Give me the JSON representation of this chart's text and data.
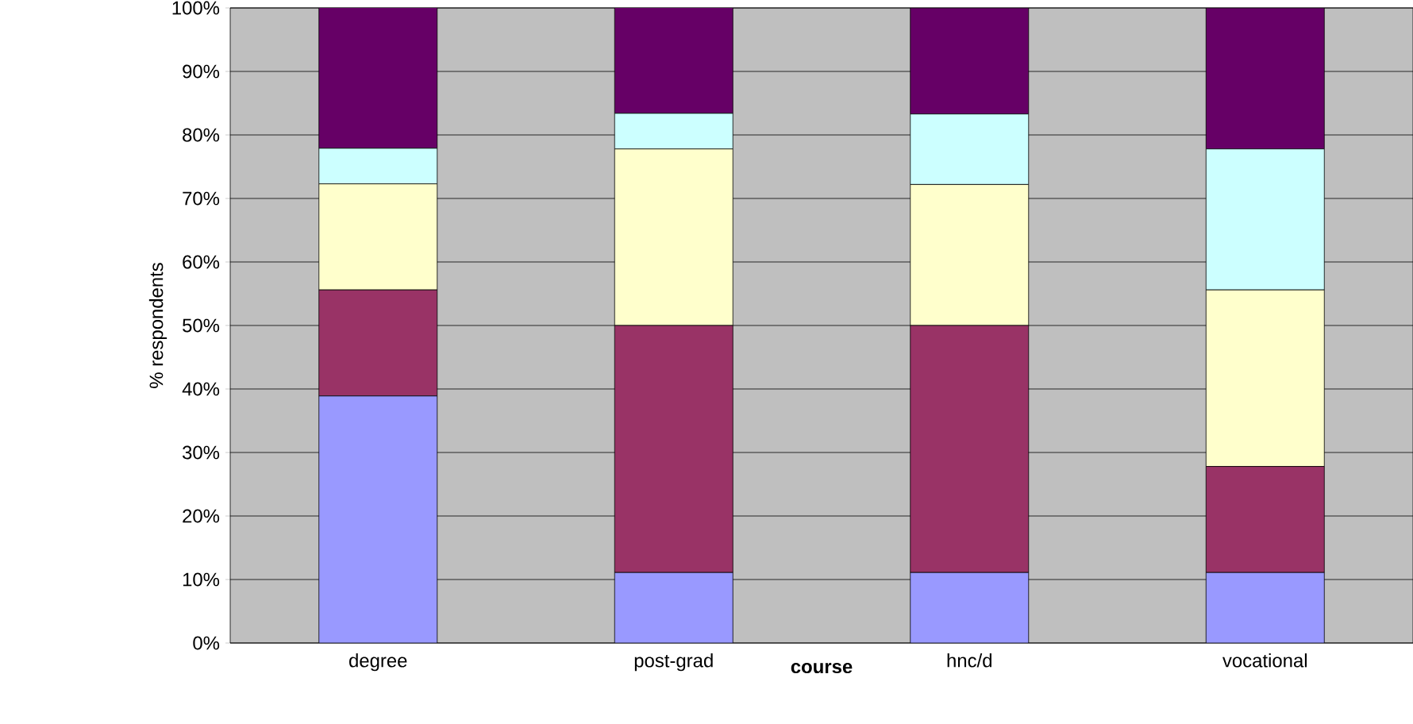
{
  "chart_data": {
    "type": "bar",
    "stacked": true,
    "xlabel": "course",
    "ylabel": "% respondents",
    "categories": [
      "degree",
      "post-grad",
      "hnc/d",
      "vocational"
    ],
    "series": [
      {
        "color": "#9999ff",
        "values": [
          38.9,
          11.1,
          11.1,
          11.1
        ]
      },
      {
        "color": "#993366",
        "values": [
          16.7,
          38.9,
          38.9,
          16.7
        ]
      },
      {
        "color": "#ffffcc",
        "values": [
          16.7,
          27.8,
          22.2,
          27.8
        ]
      },
      {
        "color": "#ccffff",
        "values": [
          5.6,
          5.6,
          11.1,
          22.2
        ]
      },
      {
        "color": "#660066",
        "values": [
          22.2,
          16.7,
          16.7,
          22.2
        ]
      }
    ],
    "ylim": [
      0,
      100
    ],
    "yticks": [
      {
        "value": 0,
        "label": "0%"
      },
      {
        "value": 10,
        "label": "10%"
      },
      {
        "value": 20,
        "label": "20%"
      },
      {
        "value": 30,
        "label": "30%"
      },
      {
        "value": 40,
        "label": "40%"
      },
      {
        "value": 50,
        "label": "50%"
      },
      {
        "value": 60,
        "label": "60%"
      },
      {
        "value": 70,
        "label": "70%"
      },
      {
        "value": 80,
        "label": "80%"
      },
      {
        "value": 90,
        "label": "90%"
      },
      {
        "value": 100,
        "label": "100%"
      }
    ],
    "grid": "y"
  }
}
